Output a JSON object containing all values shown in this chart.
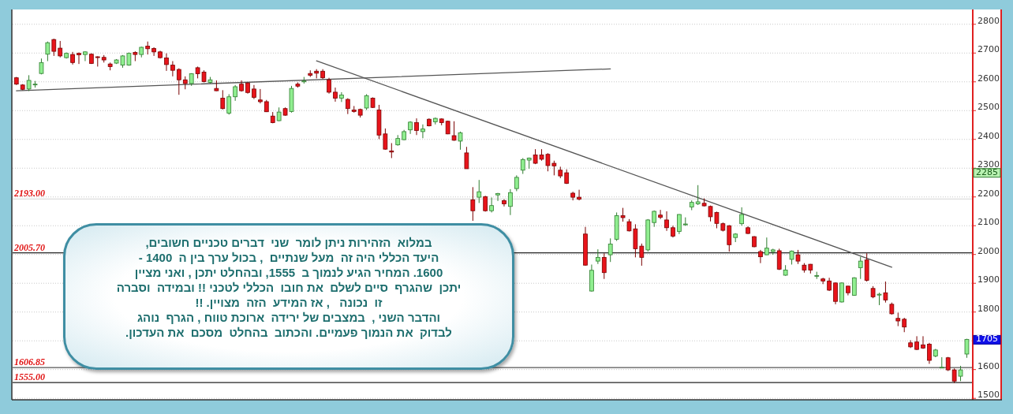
{
  "chart_data": {
    "type": "candlestick",
    "categories": [
      null,
      null,
      null,
      null,
      null,
      null,
      null,
      null,
      null,
      null,
      null,
      null,
      null,
      null,
      null,
      null,
      null,
      null,
      null,
      null,
      null,
      null,
      null,
      null,
      null,
      null,
      null,
      null,
      null,
      null,
      null,
      null,
      null,
      null,
      null,
      null,
      null,
      null,
      null,
      null,
      null,
      null,
      null,
      null,
      null,
      null,
      null,
      null,
      null,
      null,
      null,
      null,
      null,
      null,
      null,
      null,
      null,
      null,
      null,
      null,
      null,
      null,
      null,
      null,
      null,
      null,
      null,
      null,
      null,
      null,
      null,
      null,
      null,
      null,
      null,
      null,
      null,
      null,
      null,
      null,
      null,
      null,
      null,
      null,
      null,
      null,
      null,
      null,
      null,
      null,
      null,
      null,
      null,
      null,
      null,
      null,
      null,
      null,
      null,
      null,
      null,
      null,
      null,
      null,
      null,
      null,
      null,
      null,
      null,
      null,
      null,
      null,
      null,
      null,
      null,
      null,
      null,
      null,
      null,
      null,
      null,
      null,
      null,
      null,
      null,
      null,
      null,
      null,
      null,
      null,
      null,
      null,
      null,
      null,
      null,
      null,
      null,
      null,
      null,
      null,
      null,
      null,
      null,
      null,
      null,
      null,
      null,
      null,
      null,
      null,
      null,
      null,
      null
    ],
    "ohlc": [
      [
        2614,
        2617,
        2589,
        2592
      ],
      [
        2589,
        2592,
        2571,
        2574
      ],
      [
        2575,
        2623,
        2568,
        2605
      ],
      [
        2590,
        2603,
        2580,
        2592
      ],
      [
        2629,
        2681,
        2626,
        2667
      ],
      [
        2696,
        2740,
        2672,
        2736
      ],
      [
        2747,
        2750,
        2690,
        2706
      ],
      [
        2717,
        2742,
        2685,
        2690
      ],
      [
        2684,
        2702,
        2681,
        2699
      ],
      [
        2695,
        2704,
        2660,
        2667
      ],
      [
        2699,
        2702,
        2662,
        2694
      ],
      [
        2695,
        2706,
        2672,
        2704
      ],
      [
        2696,
        2699,
        2662,
        2664
      ],
      [
        2687,
        2689,
        2653,
        2685
      ],
      [
        2685,
        2693,
        2667,
        2676
      ],
      [
        2662,
        2667,
        2640,
        2653
      ],
      [
        2665,
        2679,
        2662,
        2676
      ],
      [
        2658,
        2693,
        2649,
        2690
      ],
      [
        2658,
        2702,
        2656,
        2699
      ],
      [
        2702,
        2706,
        2672,
        2695
      ],
      [
        2695,
        2722,
        2685,
        2720
      ],
      [
        2724,
        2740,
        2695,
        2715
      ],
      [
        2716,
        2720,
        2690,
        2704
      ],
      [
        2704,
        2708,
        2681,
        2684
      ],
      [
        2683,
        2699,
        2638,
        2660
      ],
      [
        2658,
        2672,
        2619,
        2640
      ],
      [
        2643,
        2647,
        2555,
        2607
      ],
      [
        2607,
        2619,
        2574,
        2594
      ],
      [
        2594,
        2630,
        2586,
        2628
      ],
      [
        2649,
        2653,
        2612,
        2628
      ],
      [
        2634,
        2640,
        2598,
        2601
      ],
      [
        2598,
        2617,
        2594,
        2607
      ],
      [
        2577,
        2605,
        2568,
        2569
      ],
      [
        2543,
        2571,
        2504,
        2507
      ],
      [
        2491,
        2557,
        2486,
        2548
      ],
      [
        2548,
        2589,
        2534,
        2583
      ],
      [
        2592,
        2605,
        2566,
        2569
      ],
      [
        2596,
        2598,
        2559,
        2563
      ],
      [
        2575,
        2589,
        2540,
        2546
      ],
      [
        2537,
        2575,
        2525,
        2531
      ],
      [
        2531,
        2537,
        2495,
        2496
      ],
      [
        2481,
        2495,
        2456,
        2458
      ],
      [
        2465,
        2511,
        2463,
        2495
      ],
      [
        2507,
        2511,
        2482,
        2484
      ],
      [
        2497,
        2586,
        2493,
        2577
      ],
      [
        2592,
        2598,
        2580,
        2585
      ],
      [
        2600,
        2617,
        2594,
        2603
      ],
      [
        2629,
        2640,
        2617,
        2623
      ],
      [
        2637,
        2644,
        2612,
        2630
      ],
      [
        2637,
        2644,
        2610,
        2614
      ],
      [
        2607,
        2614,
        2559,
        2564
      ],
      [
        2564,
        2580,
        2531,
        2543
      ],
      [
        2543,
        2564,
        2530,
        2554
      ],
      [
        2539,
        2543,
        2488,
        2507
      ],
      [
        2502,
        2516,
        2493,
        2497
      ],
      [
        2504,
        2507,
        2476,
        2484
      ],
      [
        2509,
        2557,
        2502,
        2552
      ],
      [
        2543,
        2546,
        2509,
        2511
      ],
      [
        2502,
        2520,
        2401,
        2415
      ],
      [
        2419,
        2438,
        2364,
        2366
      ],
      [
        2360,
        2387,
        2335,
        2356
      ],
      [
        2381,
        2415,
        2378,
        2403
      ],
      [
        2399,
        2433,
        2397,
        2427
      ],
      [
        2433,
        2463,
        2419,
        2460
      ],
      [
        2458,
        2473,
        2415,
        2431
      ],
      [
        2427,
        2452,
        2404,
        2436
      ],
      [
        2470,
        2473,
        2445,
        2447
      ],
      [
        2461,
        2476,
        2452,
        2473
      ],
      [
        2471,
        2473,
        2449,
        2458
      ],
      [
        2463,
        2465,
        2418,
        2419
      ],
      [
        2413,
        2463,
        2395,
        2397
      ],
      [
        2394,
        2427,
        2364,
        2423
      ],
      [
        2353,
        2374,
        2298,
        2298
      ],
      [
        2190,
        2234,
        2117,
        2152
      ],
      [
        2199,
        2259,
        2179,
        2218
      ],
      [
        2201,
        2204,
        2149,
        2152
      ],
      [
        2152,
        2198,
        2146,
        2170
      ],
      [
        2207,
        2214,
        2186,
        2212
      ],
      [
        2187,
        2192,
        2167,
        2176
      ],
      [
        2167,
        2227,
        2137,
        2215
      ],
      [
        2229,
        2275,
        2220,
        2268
      ],
      [
        2293,
        2335,
        2280,
        2330
      ],
      [
        2328,
        2337,
        2298,
        2335
      ],
      [
        2346,
        2366,
        2314,
        2317
      ],
      [
        2346,
        2366,
        2326,
        2331
      ],
      [
        2348,
        2352,
        2289,
        2309
      ],
      [
        2317,
        2326,
        2275,
        2308
      ],
      [
        2293,
        2305,
        2265,
        2273
      ],
      [
        2284,
        2296,
        2245,
        2247
      ],
      [
        2213,
        2218,
        2188,
        2199
      ],
      [
        2199,
        2225,
        2188,
        2192
      ],
      [
        2071,
        2096,
        1961,
        1963
      ],
      [
        1873,
        1965,
        1871,
        1945
      ],
      [
        1977,
        2018,
        1967,
        1990
      ],
      [
        1990,
        2004,
        1915,
        1937
      ],
      [
        1999,
        2056,
        1974,
        2036
      ],
      [
        2053,
        2146,
        2047,
        2135
      ],
      [
        2135,
        2162,
        2114,
        2128
      ],
      [
        2114,
        2123,
        2080,
        2082
      ],
      [
        2089,
        2105,
        1990,
        2020
      ],
      [
        2029,
        2038,
        1961,
        1990
      ],
      [
        2016,
        2123,
        2010,
        2120
      ],
      [
        2111,
        2153,
        2096,
        2150
      ],
      [
        2137,
        2155,
        2123,
        2129
      ],
      [
        2120,
        2150,
        2082,
        2093
      ],
      [
        2093,
        2100,
        2059,
        2064
      ],
      [
        2080,
        2140,
        2071,
        2139
      ],
      [
        2103,
        2129,
        2100,
        2106
      ],
      [
        2165,
        2188,
        2154,
        2181
      ],
      [
        2176,
        2241,
        2172,
        2183
      ],
      [
        2178,
        2195,
        2167,
        2169
      ],
      [
        2167,
        2170,
        2115,
        2131
      ],
      [
        2146,
        2149,
        2091,
        2108
      ],
      [
        2107,
        2111,
        2080,
        2084
      ],
      [
        2100,
        2102,
        2010,
        2034
      ],
      [
        2059,
        2074,
        2043,
        2071
      ],
      [
        2107,
        2164,
        2100,
        2139
      ],
      [
        2093,
        2098,
        2071,
        2073
      ],
      [
        2062,
        2064,
        2025,
        2027
      ],
      [
        2010,
        2016,
        1970,
        1992
      ],
      [
        1999,
        2059,
        1998,
        2022
      ],
      [
        2010,
        2020,
        1999,
        2016
      ],
      [
        2013,
        2020,
        1946,
        1949
      ],
      [
        1928,
        1963,
        1926,
        1946
      ],
      [
        1983,
        2014,
        1965,
        2012
      ],
      [
        1999,
        2016,
        1967,
        1977
      ],
      [
        1963,
        1970,
        1937,
        1946
      ],
      [
        1966,
        1967,
        1934,
        1946
      ],
      [
        1925,
        1940,
        1915,
        1927
      ],
      [
        1915,
        1919,
        1897,
        1908
      ],
      [
        1908,
        1919,
        1873,
        1876
      ],
      [
        1901,
        1903,
        1827,
        1837
      ],
      [
        1835,
        1903,
        1833,
        1901
      ],
      [
        1890,
        1891,
        1858,
        1867
      ],
      [
        1858,
        1921,
        1857,
        1919
      ],
      [
        1954,
        1992,
        1915,
        1977
      ],
      [
        1981,
        2004,
        1906,
        1910
      ],
      [
        1882,
        1890,
        1848,
        1853
      ],
      [
        1859,
        1867,
        1824,
        1862
      ],
      [
        1867,
        1906,
        1833,
        1842
      ],
      [
        1827,
        1833,
        1791,
        1794
      ],
      [
        1778,
        1798,
        1751,
        1769
      ],
      [
        1775,
        1780,
        1730,
        1748
      ],
      [
        1693,
        1702,
        1675,
        1679
      ],
      [
        1696,
        1716,
        1668,
        1670
      ],
      [
        1686,
        1716,
        1672,
        1675
      ],
      [
        1688,
        1693,
        1620,
        1632
      ],
      [
        1647,
        1672,
        1643,
        1668
      ],
      [
        1606,
        1643,
        1606,
        1608
      ],
      [
        1641,
        1644,
        1595,
        1599
      ],
      [
        1599,
        1604,
        1553,
        1560
      ],
      [
        1577,
        1613,
        1560,
        1599
      ],
      [
        1654,
        1707,
        1641,
        1705
      ]
    ],
    "series": [
      {
        "type": "line",
        "color": "#555555",
        "values": [
          2569,
          null,
          null,
          null,
          null,
          null,
          null,
          null,
          null,
          null,
          null,
          null,
          null,
          null,
          null,
          null,
          null,
          null,
          null,
          null,
          null,
          null,
          null,
          null,
          null,
          null,
          null,
          null,
          null,
          null,
          null,
          null,
          null,
          null,
          null,
          null,
          null,
          null,
          null,
          null,
          null,
          null,
          null,
          null,
          null,
          null,
          null,
          null,
          null,
          null,
          null,
          null,
          null,
          null,
          null,
          null,
          null,
          null,
          null,
          null,
          null,
          null,
          null,
          null,
          null,
          null,
          null,
          null,
          null,
          null,
          null,
          null,
          null,
          null,
          null,
          null,
          null,
          null,
          null,
          null,
          null,
          null,
          null,
          null,
          null,
          null,
          null,
          null,
          null,
          null,
          null,
          null,
          null,
          null,
          null,
          2645,
          null,
          null,
          null,
          null,
          null,
          null,
          null,
          null,
          null,
          null,
          null,
          null,
          null,
          null,
          null,
          null,
          null,
          null,
          null,
          null,
          null,
          null,
          null,
          null,
          null,
          null,
          null,
          null,
          null,
          null,
          null,
          null,
          null,
          null,
          null,
          null,
          null,
          null,
          null,
          null,
          null,
          null,
          null,
          null,
          null,
          null,
          null,
          null,
          null,
          null,
          null,
          null,
          null,
          null,
          null,
          null,
          null
        ]
      },
      {
        "type": "line",
        "color": "#555555",
        "values": [
          null,
          null,
          null,
          null,
          null,
          null,
          null,
          null,
          null,
          null,
          null,
          null,
          null,
          null,
          null,
          null,
          null,
          null,
          null,
          null,
          null,
          null,
          null,
          null,
          null,
          null,
          null,
          null,
          null,
          null,
          null,
          null,
          null,
          null,
          null,
          null,
          null,
          null,
          null,
          null,
          null,
          null,
          null,
          null,
          null,
          null,
          null,
          null,
          2673,
          null,
          null,
          null,
          null,
          null,
          null,
          null,
          null,
          null,
          null,
          null,
          null,
          null,
          null,
          null,
          null,
          null,
          null,
          null,
          null,
          null,
          null,
          null,
          null,
          null,
          null,
          null,
          null,
          null,
          null,
          null,
          null,
          null,
          null,
          null,
          null,
          null,
          null,
          null,
          null,
          null,
          null,
          null,
          null,
          null,
          null,
          null,
          null,
          null,
          null,
          null,
          null,
          null,
          null,
          null,
          null,
          null,
          null,
          null,
          null,
          null,
          null,
          null,
          null,
          null,
          null,
          null,
          null,
          null,
          null,
          null,
          null,
          null,
          null,
          null,
          null,
          null,
          null,
          null,
          null,
          null,
          null,
          null,
          null,
          null,
          null,
          null,
          null,
          null,
          null,
          null,
          1956,
          null,
          null,
          null,
          null,
          null,
          null,
          null,
          null,
          null,
          null,
          null,
          null
        ]
      }
    ],
    "ylim": [
      1495,
      2846
    ],
    "yticks": [
      1500,
      1600,
      {
        "value": 1700,
        "label": null
      },
      1800,
      1900,
      2000,
      2100,
      2200,
      2300,
      2400,
      2500,
      2600,
      2700,
      2800
    ],
    "grid": "y",
    "tick_labels": "y",
    "ref_lines": [
      {
        "axis": "y",
        "value": 2193.0,
        "label": "2193.00",
        "color": "#dddddd"
      },
      {
        "axis": "y",
        "value": 2005.7,
        "label": "2005.70",
        "color": "#222222"
      },
      {
        "axis": "y",
        "value": 1606.85,
        "label": "1606.85",
        "color": "#555555"
      },
      {
        "axis": "y",
        "value": 1555.0,
        "label": "1555.00",
        "color": "#222222"
      }
    ],
    "annotations": [
      {
        "text": "2285",
        "y": 2285
      },
      {
        "text": "1705",
        "y": 1705
      },
      "במלוא  הזהירות ניתן לומר  שני  דברים טכניים חשובים,\nהיעד הכללי היה זה  מעל שנתיים  , בכול ערך בין ה  1400 -\n1600. המחיר הגיע לנמוך ב  1555, ובהחלט יתכן , ואני מציין\nיתכן  שהגרף  סיים לשלם  את חובו  הכללי לטכני !! ובמידה  וסברה\nזו  נכונה   , אז המידע  הזה  מצויין. !!\nוהדבר השני ,  במצבים של ירידה  ארוכת טווח , הגרף  נוהג\nלבדוק  את הנמוך פעמיים. והכתוב  בהחלט  מסכם  את העדכון."
    ]
  }
}
